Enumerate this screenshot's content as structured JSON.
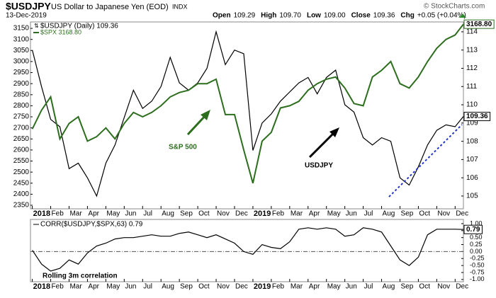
{
  "header": {
    "symbol": "$USDJPY",
    "name": "US Dollar to Japanese Yen (EOD)",
    "exchange": "INDX",
    "date": "13-Dec-2019",
    "copyright": "© StockCharts.com",
    "quote": [
      {
        "label": "Open",
        "value": "109.29"
      },
      {
        "label": "High",
        "value": "109.70"
      },
      {
        "label": "Low",
        "value": "109.00"
      },
      {
        "label": "Close",
        "value": "109.36"
      },
      {
        "label": "Chg",
        "value": "+0.05 (+0.04%)"
      }
    ]
  },
  "chart_data": [
    {
      "type": "line",
      "x": [
        0,
        0.5,
        1,
        1.5,
        2,
        2.5,
        3,
        3.5,
        4,
        4.5,
        5,
        5.5,
        6,
        6.5,
        7,
        7.5,
        8,
        8.5,
        9,
        9.5,
        10,
        10.5,
        11,
        11.5,
        12,
        12.5,
        13,
        13.5,
        14,
        14.5,
        15,
        15.5,
        16,
        16.5,
        17,
        17.5,
        18,
        18.5,
        19,
        19.5,
        20,
        20.5,
        21,
        21.5,
        22,
        22.5,
        23,
        23.45
      ],
      "series": [
        {
          "name": "$USDJPY (Daily) 109.36",
          "color": "#000000",
          "axis": "y2",
          "last_label": "109.36",
          "values": [
            113.0,
            111.0,
            109.2,
            108.8,
            106.5,
            106.8,
            106.0,
            105.0,
            106.8,
            107.8,
            109.3,
            110.8,
            109.8,
            110.2,
            111.0,
            112.6,
            111.2,
            110.8,
            111.2,
            112.0,
            114.0,
            112.2,
            113.0,
            112.8,
            107.5,
            109.0,
            109.5,
            110.2,
            110.7,
            111.2,
            111.5,
            110.6,
            111.5,
            111.9,
            110.0,
            109.6,
            108.2,
            107.8,
            108.2,
            108.0,
            106.0,
            105.6,
            106.6,
            107.8,
            108.6,
            108.9,
            108.8,
            109.36
          ]
        },
        {
          "name": "$SPX 3168.80",
          "color": "#2d6e1e",
          "last_label": "3168.80",
          "values": [
            2695,
            2780,
            2840,
            2650,
            2720,
            2750,
            2640,
            2660,
            2700,
            2650,
            2720,
            2770,
            2750,
            2770,
            2800,
            2840,
            2860,
            2870,
            2900,
            2900,
            2920,
            2760,
            2760,
            2600,
            2450,
            2640,
            2680,
            2790,
            2800,
            2820,
            2870,
            2900,
            2920,
            2930,
            2880,
            2810,
            2800,
            2930,
            2960,
            3000,
            2900,
            2880,
            2930,
            3000,
            3060,
            3100,
            3120,
            3168.8
          ]
        }
      ],
      "xlim": [
        -0.1,
        23.45
      ],
      "xticks": [
        {
          "value": 0,
          "label": "2018"
        },
        {
          "value": 1,
          "label": "Feb"
        },
        {
          "value": 2,
          "label": "Mar"
        },
        {
          "value": 3,
          "label": "Apr"
        },
        {
          "value": 4,
          "label": "May"
        },
        {
          "value": 5,
          "label": "Jun"
        },
        {
          "value": 6,
          "label": "Jul"
        },
        {
          "value": 7,
          "label": "Aug"
        },
        {
          "value": 8,
          "label": "Sep"
        },
        {
          "value": 9,
          "label": "Oct"
        },
        {
          "value": 10,
          "label": "Nov"
        },
        {
          "value": 11,
          "label": "Dec"
        },
        {
          "value": 12,
          "label": "2019"
        },
        {
          "value": 13,
          "label": "Feb"
        },
        {
          "value": 14,
          "label": "Mar"
        },
        {
          "value": 15,
          "label": "Apr"
        },
        {
          "value": 16,
          "label": "May"
        },
        {
          "value": 17,
          "label": "Jun"
        },
        {
          "value": 18,
          "label": "Jul"
        },
        {
          "value": 19,
          "label": "Aug"
        },
        {
          "value": 20,
          "label": "Sep"
        },
        {
          "value": 21,
          "label": "Oct"
        },
        {
          "value": 22,
          "label": "Nov"
        },
        {
          "value": 23,
          "label": "Dec"
        }
      ],
      "ylim": [
        2334,
        3179
      ],
      "yticks": [
        2350,
        2400,
        2450,
        2500,
        2550,
        2600,
        2650,
        2700,
        2750,
        2800,
        2850,
        2900,
        2950,
        3000,
        3050,
        3100,
        3150
      ],
      "y2lim": [
        104.3,
        114.54
      ],
      "y2ticks": [
        105,
        106,
        107,
        108,
        109,
        110,
        111,
        112,
        113,
        114
      ],
      "annotations": [
        "S&P 500",
        "USDJPY"
      ]
    },
    {
      "type": "line",
      "x": [
        0,
        0.5,
        1,
        1.5,
        2,
        2.5,
        3,
        3.5,
        4,
        4.5,
        5,
        5.5,
        6,
        6.5,
        7,
        7.5,
        8,
        8.5,
        9,
        9.5,
        10,
        10.5,
        11,
        11.5,
        12,
        12.5,
        13,
        13.5,
        14,
        14.5,
        15,
        15.5,
        16,
        16.5,
        17,
        17.5,
        18,
        18.5,
        19,
        19.5,
        20,
        20.5,
        21,
        21.5,
        22,
        22.5,
        23,
        23.45
      ],
      "series": [
        {
          "name": "CORR($USDJPY,$SPX,63) 0.79",
          "color": "#000000",
          "last_label": "0.79",
          "values": [
            0.05,
            -0.45,
            -0.7,
            -0.6,
            -0.3,
            -0.45,
            -0.05,
            0.2,
            0.3,
            0.45,
            0.5,
            0.5,
            0.55,
            0.6,
            0.55,
            0.55,
            0.65,
            0.7,
            0.6,
            0.5,
            0.6,
            0.45,
            0.3,
            0.0,
            -0.1,
            0.25,
            0.15,
            0.1,
            0.35,
            0.8,
            0.85,
            0.8,
            0.85,
            0.8,
            0.55,
            0.6,
            0.85,
            0.8,
            0.7,
            0.2,
            -0.3,
            -0.5,
            -0.2,
            0.6,
            0.8,
            0.8,
            0.8,
            0.79
          ]
        }
      ],
      "xlim": [
        -0.1,
        23.45
      ],
      "xticks": [
        {
          "value": 0,
          "label": "2018"
        },
        {
          "value": 1,
          "label": "Feb"
        },
        {
          "value": 2,
          "label": "Mar"
        },
        {
          "value": 3,
          "label": "Apr"
        },
        {
          "value": 4,
          "label": "May"
        },
        {
          "value": 5,
          "label": "Jun"
        },
        {
          "value": 6,
          "label": "Jul"
        },
        {
          "value": 7,
          "label": "Aug"
        },
        {
          "value": 8,
          "label": "Sep"
        },
        {
          "value": 9,
          "label": "Oct"
        },
        {
          "value": 10,
          "label": "Nov"
        },
        {
          "value": 11,
          "label": "Dec"
        },
        {
          "value": 12,
          "label": "2019"
        },
        {
          "value": 13,
          "label": "Feb"
        },
        {
          "value": 14,
          "label": "Mar"
        },
        {
          "value": 15,
          "label": "Apr"
        },
        {
          "value": 16,
          "label": "May"
        },
        {
          "value": 17,
          "label": "Jun"
        },
        {
          "value": 18,
          "label": "Jul"
        },
        {
          "value": 19,
          "label": "Aug"
        },
        {
          "value": 20,
          "label": "Sep"
        },
        {
          "value": 21,
          "label": "Oct"
        },
        {
          "value": 22,
          "label": "Nov"
        },
        {
          "value": 23,
          "label": "Dec"
        }
      ],
      "ylim": [
        -1.08,
        1.15
      ],
      "yticks": [
        {
          "value": 1,
          "label": "1.00"
        },
        {
          "value": 0.75,
          "label": "0.75"
        },
        {
          "value": 0.5,
          "label": "0.50"
        },
        {
          "value": 0.25,
          "label": "0.25"
        },
        {
          "value": 0,
          "label": "0.00"
        },
        {
          "value": -0.25,
          "label": "-0.25"
        },
        {
          "value": -0.5,
          "label": "-0.50"
        },
        {
          "value": -0.75,
          "label": "-0.75"
        },
        {
          "value": -1,
          "label": "-1.00"
        }
      ],
      "annotations": [
        "Rolling 3m correlation"
      ]
    }
  ]
}
